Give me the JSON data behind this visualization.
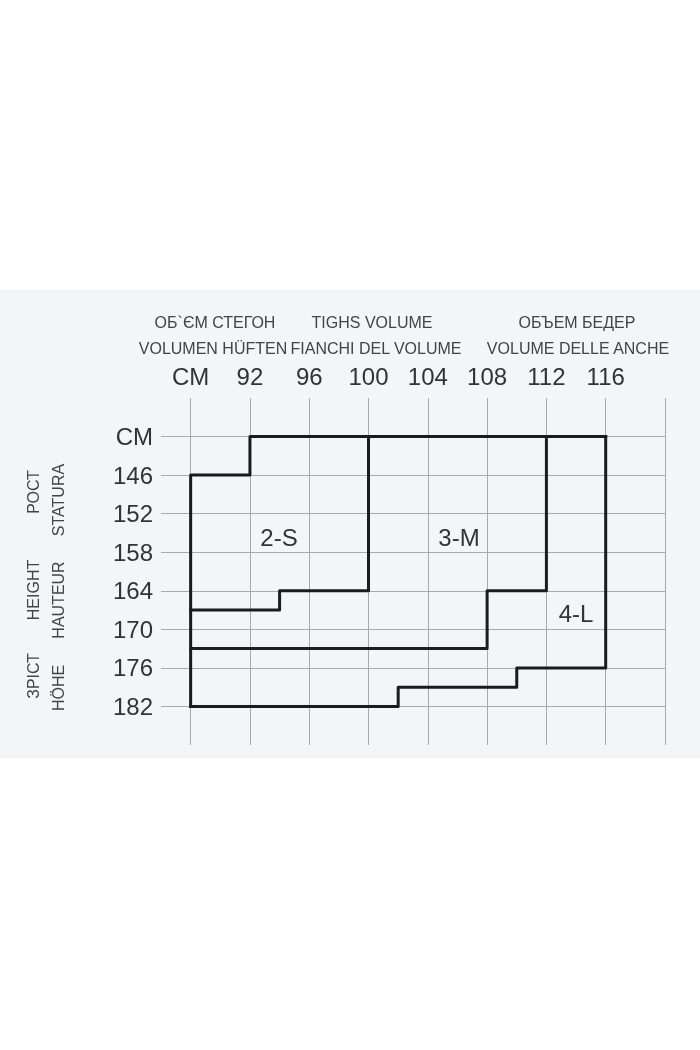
{
  "chart_data": {
    "type": "line",
    "annotations": [
      "ОБ`ЄМ СТЕГОН",
      "TIGHS VOLUME",
      "ОБЪЕМ БЕДЕР",
      "VOLUMEN HÜFTEN",
      "FIANCHI DEL VOLUME",
      "VOLUME DELLE ANCHE",
      "РОСТ",
      "STATURA",
      "HEIGHT",
      "HAUTEUR",
      "ЗРІСТ",
      "HÖHE",
      "2-S",
      "3-M",
      "4-L"
    ],
    "series": [
      {
        "color": "#1a1a1a",
        "x": [
          88,
          88,
          92,
          92,
          116
        ],
        "values": [
          182,
          146,
          146,
          140,
          140
        ]
      },
      {
        "color": "#1b1b1b",
        "x": [
          88,
          102,
          102,
          110,
          110,
          116,
          116
        ],
        "values": [
          182,
          182,
          179,
          179,
          176,
          176,
          140
        ]
      },
      {
        "color": "#1c1c1c",
        "x": [
          88,
          94,
          94,
          100,
          100
        ],
        "values": [
          167,
          167,
          164,
          164,
          140
        ]
      },
      {
        "color": "#1d1d1d",
        "x": [
          88,
          108,
          108,
          112,
          112
        ],
        "values": [
          173,
          173,
          164,
          164,
          140
        ]
      }
    ],
    "xlim": [
      86,
      120
    ],
    "xticks": [
      {
        "value": 88,
        "label": "CM"
      },
      92,
      96,
      100,
      104,
      108,
      112,
      116,
      {
        "value": 120,
        "label": null
      }
    ],
    "ylim": [
      188,
      134
    ],
    "yticks": [
      {
        "value": 140,
        "label": "CM"
      },
      146,
      152,
      158,
      164,
      170,
      176,
      182
    ],
    "grid": true,
    "marker": "none",
    "line_style": "solid"
  }
}
